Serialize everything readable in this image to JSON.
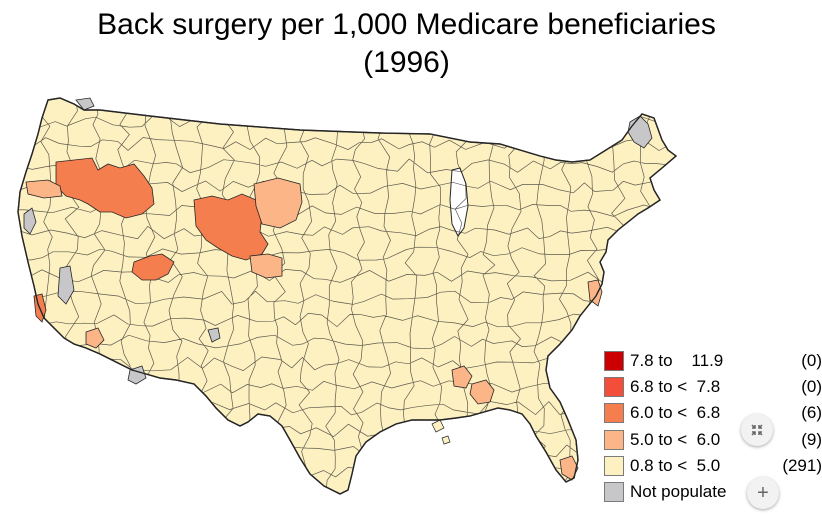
{
  "title_line1": "Back surgery per 1,000 Medicare beneficiaries",
  "title_line2": "(1996)",
  "colors": {
    "bin_7_8_11_9": "#cc0000",
    "bin_6_8_7_8": "#f24e3a",
    "bin_6_0_6_8": "#f57e4f",
    "bin_5_0_6_0": "#fbb587",
    "bin_0_8_5_0": "#fdf1c2",
    "not_populated": "#c7c7c9",
    "boundary": "#262626"
  },
  "legend": [
    {
      "label": "7.8 to    11.9",
      "count": "(0)",
      "color_key": "bin_7_8_11_9"
    },
    {
      "label": "6.8 to <  7.8",
      "count": "(0)",
      "color_key": "bin_6_8_7_8"
    },
    {
      "label": "6.0 to <  6.8",
      "count": "(6)",
      "color_key": "bin_6_0_6_8"
    },
    {
      "label": "5.0 to <  6.0",
      "count": "(9)",
      "color_key": "bin_5_0_6_0"
    },
    {
      "label": "0.8 to <  5.0",
      "count": "(291)",
      "color_key": "bin_0_8_5_0"
    },
    {
      "label": "Not populate",
      "count": "",
      "color_key": "not_populated"
    }
  ],
  "controls": {
    "collapse_icon": "collapse-arrows-icon",
    "zoom_in_icon": "plus-icon",
    "zoom_in_label": "+"
  }
}
